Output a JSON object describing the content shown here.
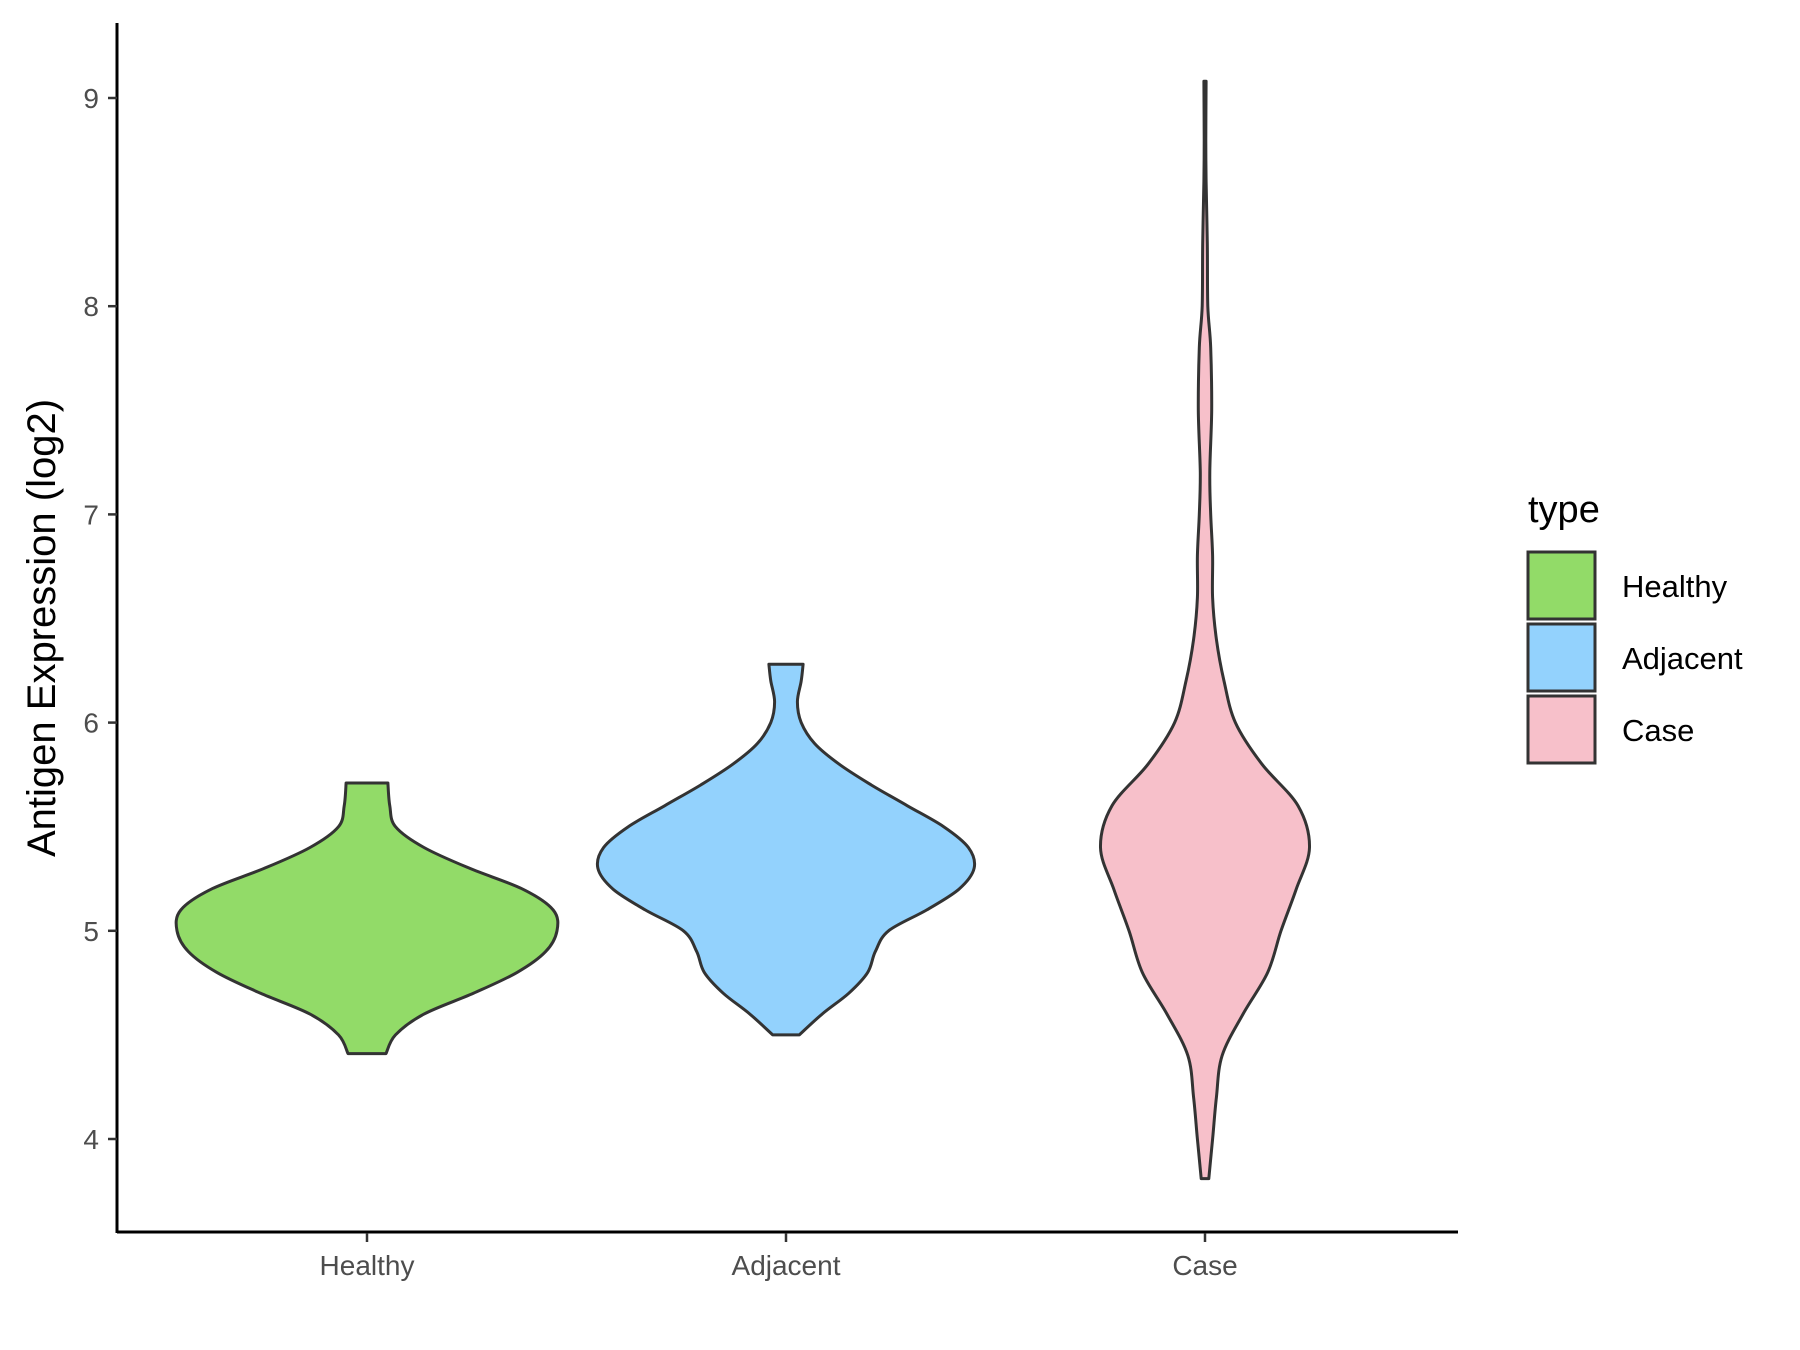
{
  "chart_data": {
    "type": "violin",
    "title": "",
    "xlabel": "",
    "ylabel": "Antigen Expression (log2)",
    "ylim": [
      3.55,
      9.35
    ],
    "yticks": [
      4,
      5,
      6,
      7,
      8,
      9
    ],
    "categories": [
      "Healthy",
      "Adjacent",
      "Case"
    ],
    "legend": {
      "title": "type",
      "position": "right",
      "entries": [
        "Healthy",
        "Adjacent",
        "Case"
      ]
    },
    "colors": {
      "Healthy": "#92db68",
      "Adjacent": "#93d2fd",
      "Case": "#f7c0ca",
      "outline": "#333333"
    },
    "series": [
      {
        "category": "Healthy",
        "min": 4.41,
        "max": 5.71,
        "density": [
          {
            "y": 4.41,
            "w": 0.1
          },
          {
            "y": 4.5,
            "w": 0.15
          },
          {
            "y": 4.6,
            "w": 0.3
          },
          {
            "y": 4.7,
            "w": 0.56
          },
          {
            "y": 4.8,
            "w": 0.79
          },
          {
            "y": 4.9,
            "w": 0.94
          },
          {
            "y": 5.0,
            "w": 1.0
          },
          {
            "y": 5.1,
            "w": 0.98
          },
          {
            "y": 5.2,
            "w": 0.82
          },
          {
            "y": 5.3,
            "w": 0.54
          },
          {
            "y": 5.4,
            "w": 0.3
          },
          {
            "y": 5.5,
            "w": 0.15
          },
          {
            "y": 5.6,
            "w": 0.12
          },
          {
            "y": 5.71,
            "w": 0.11
          }
        ]
      },
      {
        "category": "Adjacent",
        "min": 4.5,
        "max": 6.28,
        "density": [
          {
            "y": 4.5,
            "w": 0.07
          },
          {
            "y": 4.6,
            "w": 0.19
          },
          {
            "y": 4.7,
            "w": 0.33
          },
          {
            "y": 4.8,
            "w": 0.43
          },
          {
            "y": 4.9,
            "w": 0.47
          },
          {
            "y": 5.0,
            "w": 0.54
          },
          {
            "y": 5.1,
            "w": 0.74
          },
          {
            "y": 5.2,
            "w": 0.91
          },
          {
            "y": 5.3,
            "w": 0.99
          },
          {
            "y": 5.4,
            "w": 0.96
          },
          {
            "y": 5.5,
            "w": 0.83
          },
          {
            "y": 5.6,
            "w": 0.64
          },
          {
            "y": 5.7,
            "w": 0.45
          },
          {
            "y": 5.8,
            "w": 0.28
          },
          {
            "y": 5.9,
            "w": 0.15
          },
          {
            "y": 6.0,
            "w": 0.08
          },
          {
            "y": 6.1,
            "w": 0.06
          },
          {
            "y": 6.2,
            "w": 0.08
          },
          {
            "y": 6.28,
            "w": 0.09
          }
        ]
      },
      {
        "category": "Case",
        "min": 3.81,
        "max": 9.08,
        "density": [
          {
            "y": 3.81,
            "w": 0.02
          },
          {
            "y": 4.0,
            "w": 0.04
          },
          {
            "y": 4.2,
            "w": 0.06
          },
          {
            "y": 4.4,
            "w": 0.09
          },
          {
            "y": 4.6,
            "w": 0.2
          },
          {
            "y": 4.8,
            "w": 0.33
          },
          {
            "y": 5.0,
            "w": 0.4
          },
          {
            "y": 5.2,
            "w": 0.48
          },
          {
            "y": 5.4,
            "w": 0.55
          },
          {
            "y": 5.6,
            "w": 0.49
          },
          {
            "y": 5.8,
            "w": 0.3
          },
          {
            "y": 6.0,
            "w": 0.16
          },
          {
            "y": 6.2,
            "w": 0.1
          },
          {
            "y": 6.4,
            "w": 0.06
          },
          {
            "y": 6.6,
            "w": 0.04
          },
          {
            "y": 6.8,
            "w": 0.04
          },
          {
            "y": 7.0,
            "w": 0.03
          },
          {
            "y": 7.2,
            "w": 0.025
          },
          {
            "y": 7.5,
            "w": 0.035
          },
          {
            "y": 7.8,
            "w": 0.03
          },
          {
            "y": 8.0,
            "w": 0.015
          },
          {
            "y": 8.3,
            "w": 0.012
          },
          {
            "y": 8.6,
            "w": 0.006
          },
          {
            "y": 8.8,
            "w": 0.004
          },
          {
            "y": 9.08,
            "w": 0.006
          }
        ]
      }
    ]
  }
}
